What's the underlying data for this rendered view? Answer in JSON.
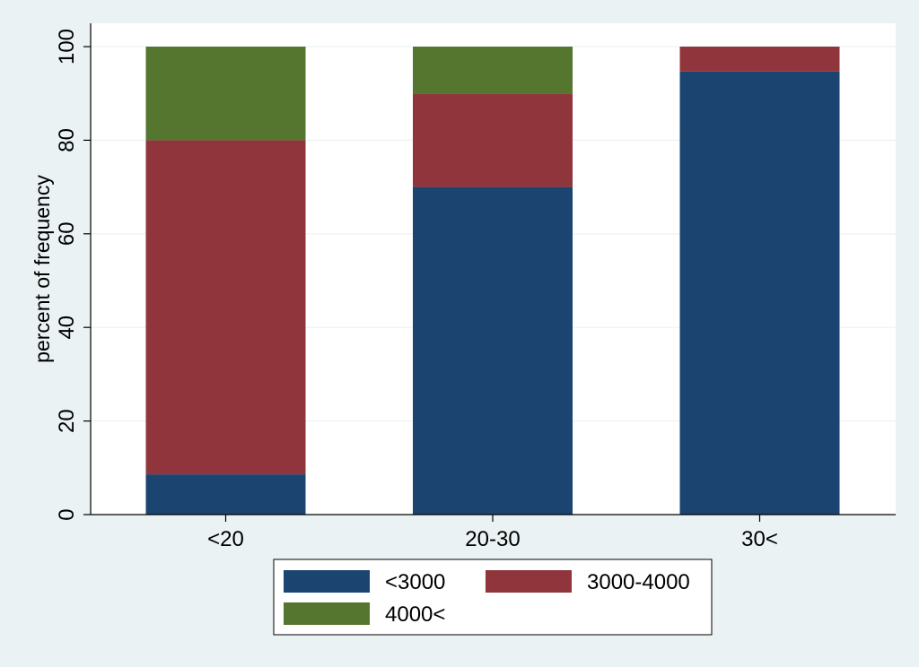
{
  "chart_data": {
    "type": "bar",
    "stacked": true,
    "title": "",
    "xlabel": "",
    "ylabel": "percent of frequency",
    "ylim": [
      0,
      100
    ],
    "yticks": [
      0,
      20,
      40,
      60,
      80,
      100
    ],
    "grid": true,
    "legend_position": "bottom",
    "categories": [
      "<20",
      "20-30",
      "30<"
    ],
    "series": [
      {
        "name": "<3000",
        "color": "#1b4570",
        "values": [
          8.6,
          70,
          94.7
        ]
      },
      {
        "name": "3000-4000",
        "color": "#90353b",
        "values": [
          71.4,
          20,
          5.3
        ]
      },
      {
        "name": "4000<",
        "color": "#55762f",
        "values": [
          20,
          10,
          0
        ]
      }
    ]
  }
}
